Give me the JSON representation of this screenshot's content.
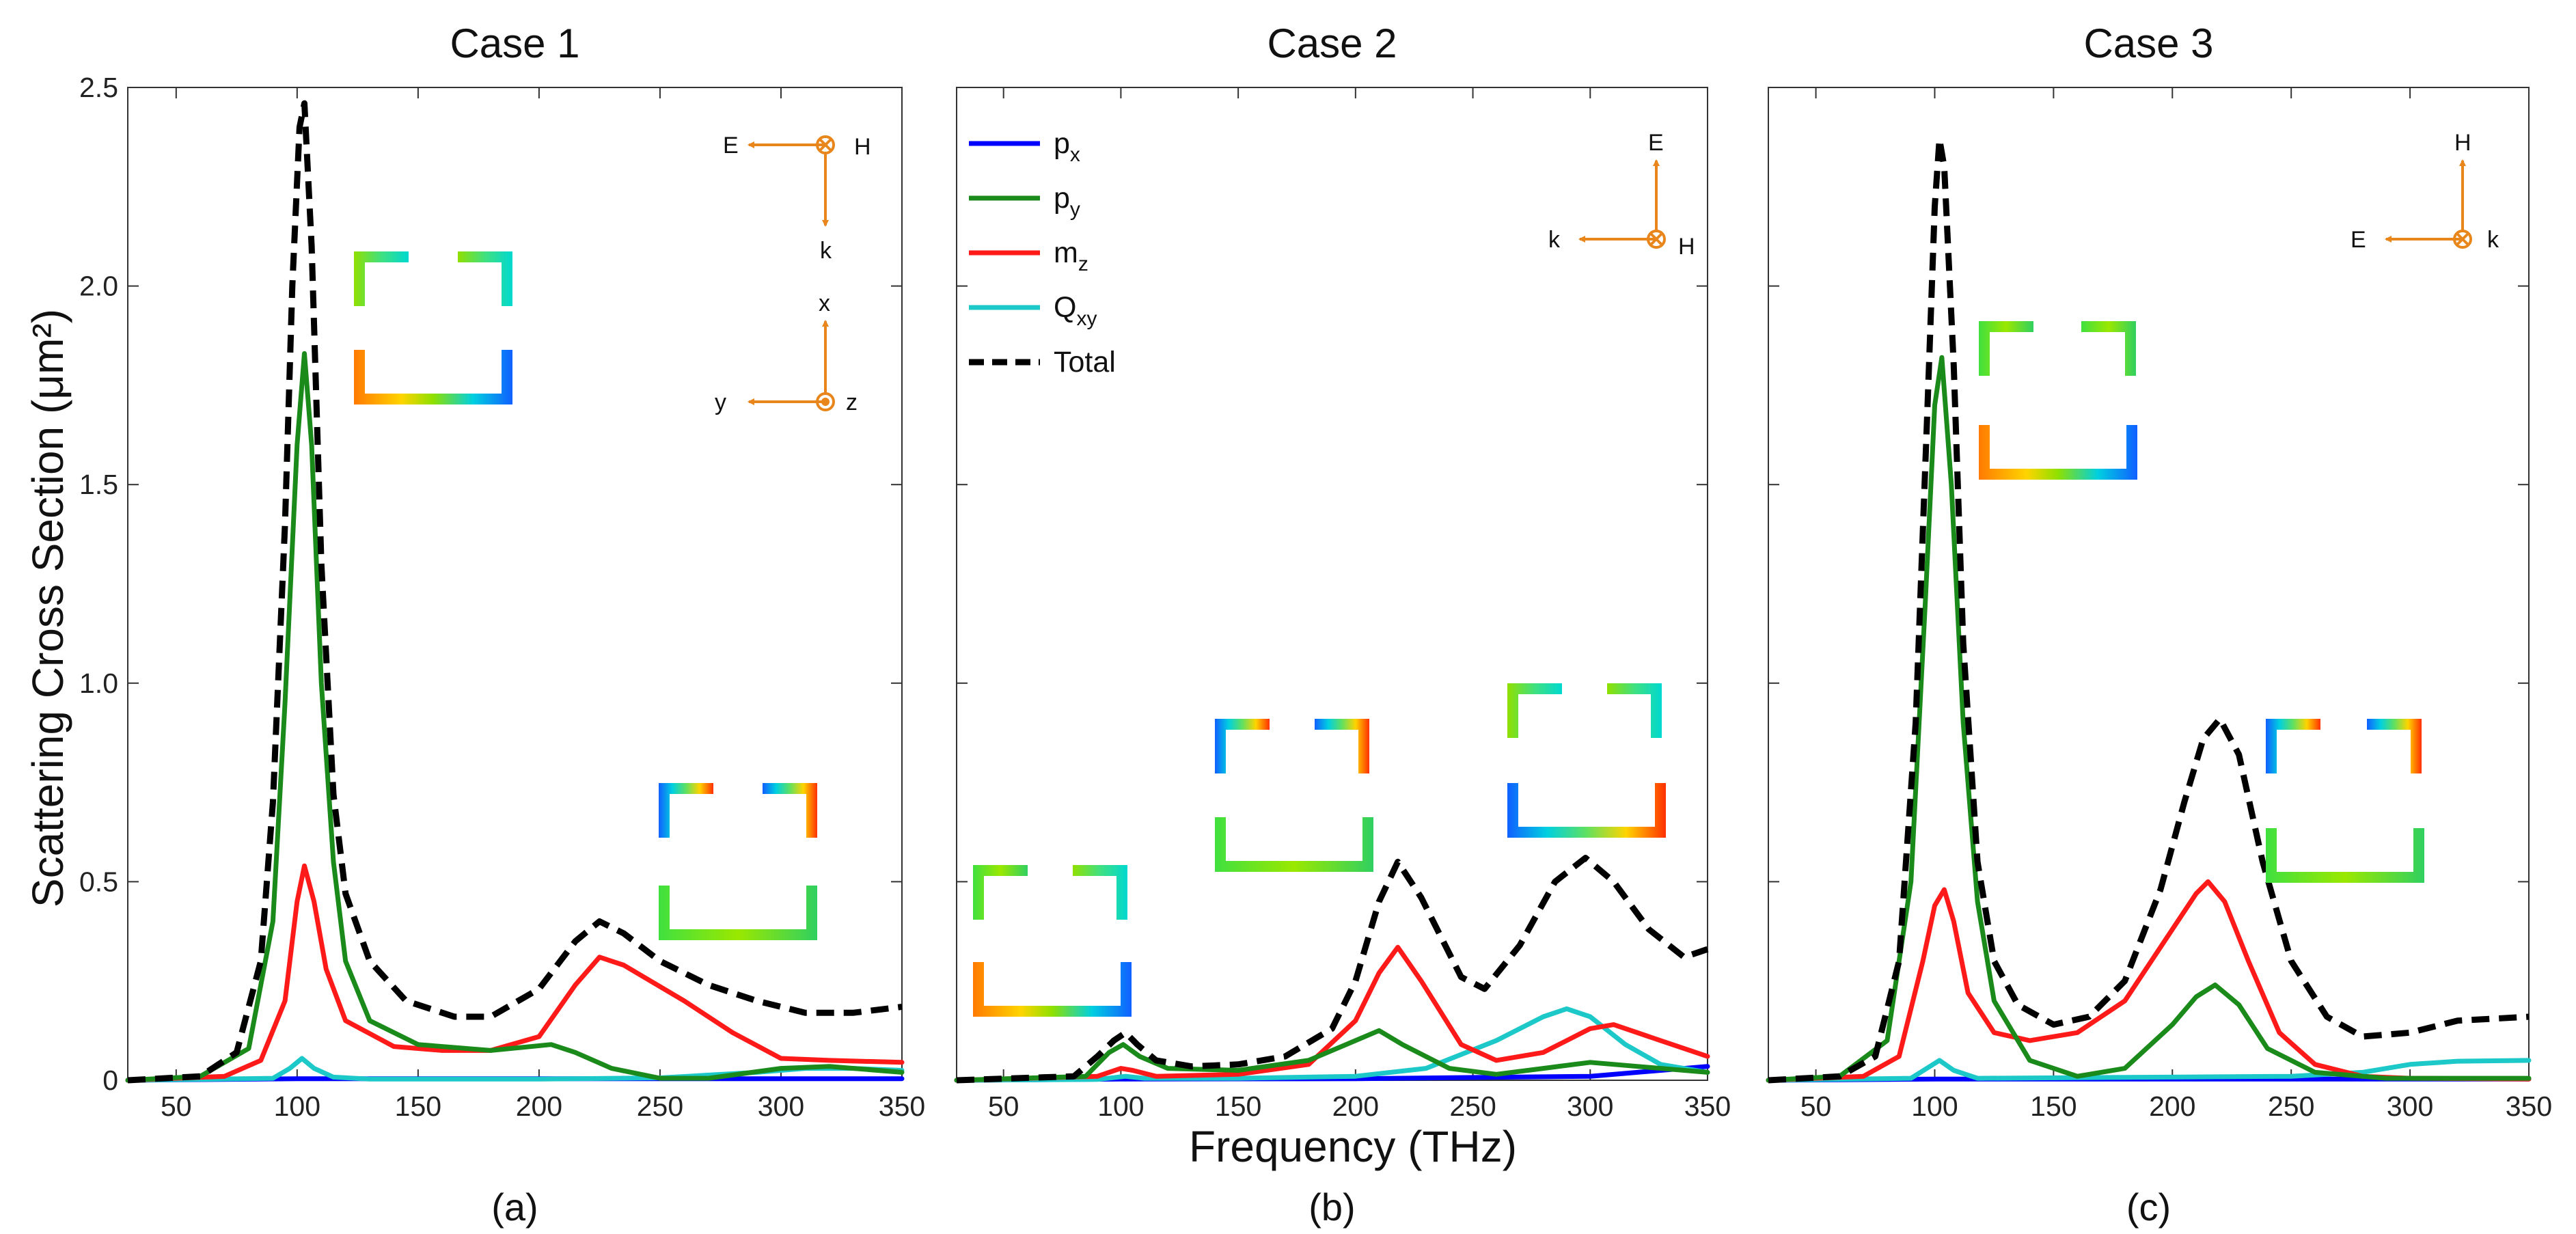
{
  "figure": {
    "ylabel": "Scattering Cross Section (μm²)",
    "xlabel": "Frequency (THz)"
  },
  "legend": [
    {
      "label": "p",
      "sub": "x",
      "series_key": "px",
      "color": "#0000ff",
      "dash": false
    },
    {
      "label": "p",
      "sub": "y",
      "series_key": "py",
      "color": "#1a8a1a",
      "dash": false
    },
    {
      "label": "m",
      "sub": "z",
      "series_key": "mz",
      "color": "#ff1a1a",
      "dash": false
    },
    {
      "label": "Q",
      "sub": "xy",
      "series_key": "qxy",
      "color": "#1cc8c8",
      "dash": false
    },
    {
      "label": "Total",
      "sub": "",
      "series_key": "total",
      "color": "#000000",
      "dash": true
    }
  ],
  "chart_data": [
    {
      "type": "line",
      "title": "Case 1",
      "sublabel": "(a)",
      "xlabel": "Frequency (THz)",
      "ylabel": "Scattering Cross Section (μm²)",
      "xlim": [
        30,
        350
      ],
      "ylim": [
        0,
        2.5
      ],
      "xticks": [
        50,
        100,
        150,
        200,
        250,
        300,
        350
      ],
      "yticks": [
        0,
        0.5,
        1.0,
        1.5,
        2.0,
        2.5
      ],
      "ytick_labels": [
        "0",
        "0.5",
        "1.0",
        "1.5",
        "2.0",
        "2.5"
      ],
      "coordinate_labels": [
        "E",
        "H",
        "k",
        "x",
        "y",
        "z"
      ],
      "series": [
        {
          "name": "px",
          "x": [
            30,
            100,
            200,
            350
          ],
          "values": [
            0,
            0.004,
            0.004,
            0.004
          ]
        },
        {
          "name": "py",
          "x": [
            30,
            60,
            80,
            90,
            95,
            100,
            103,
            106,
            110,
            115,
            120,
            130,
            150,
            180,
            205,
            215,
            230,
            250,
            270,
            300,
            320,
            350
          ],
          "values": [
            0,
            0.01,
            0.08,
            0.4,
            0.95,
            1.6,
            1.83,
            1.6,
            1.0,
            0.55,
            0.3,
            0.15,
            0.09,
            0.075,
            0.09,
            0.07,
            0.03,
            0.005,
            0.005,
            0.03,
            0.035,
            0.02
          ]
        },
        {
          "name": "mz",
          "x": [
            30,
            70,
            85,
            95,
            100,
            103,
            107,
            112,
            120,
            140,
            160,
            180,
            200,
            215,
            225,
            235,
            260,
            280,
            300,
            320,
            350
          ],
          "values": [
            0,
            0.01,
            0.05,
            0.2,
            0.45,
            0.54,
            0.45,
            0.28,
            0.15,
            0.085,
            0.075,
            0.075,
            0.11,
            0.24,
            0.31,
            0.29,
            0.2,
            0.12,
            0.055,
            0.05,
            0.045
          ]
        },
        {
          "name": "qxy",
          "x": [
            30,
            90,
            97,
            102,
            107,
            115,
            130,
            200,
            250,
            290,
            310,
            330,
            350
          ],
          "values": [
            0,
            0.005,
            0.03,
            0.055,
            0.03,
            0.008,
            0.003,
            0.003,
            0.006,
            0.02,
            0.03,
            0.03,
            0.025
          ]
        },
        {
          "name": "total",
          "x": [
            30,
            60,
            75,
            85,
            90,
            95,
            98,
            101,
            103,
            106,
            110,
            115,
            120,
            130,
            145,
            165,
            180,
            200,
            215,
            225,
            235,
            250,
            270,
            290,
            310,
            330,
            350
          ],
          "values": [
            0,
            0.01,
            0.07,
            0.3,
            0.7,
            1.4,
            2.0,
            2.4,
            2.46,
            2.1,
            1.3,
            0.72,
            0.47,
            0.3,
            0.2,
            0.16,
            0.16,
            0.23,
            0.35,
            0.4,
            0.37,
            0.3,
            0.24,
            0.2,
            0.17,
            0.17,
            0.185
          ]
        }
      ]
    },
    {
      "type": "line",
      "title": "Case 2",
      "sublabel": "(b)",
      "xlabel": "Frequency (THz)",
      "xlim": [
        30,
        350
      ],
      "ylim": [
        0,
        2.5
      ],
      "xticks": [
        50,
        100,
        150,
        200,
        250,
        300,
        350
      ],
      "yticks": [
        0,
        0.5,
        1.0,
        1.5,
        2.0,
        2.5
      ],
      "coordinate_labels": [
        "E",
        "k",
        "H"
      ],
      "series": [
        {
          "name": "px",
          "x": [
            30,
            100,
            200,
            300,
            350
          ],
          "values": [
            0,
            0.003,
            0.004,
            0.01,
            0.035
          ]
        },
        {
          "name": "py",
          "x": [
            30,
            85,
            95,
            101,
            108,
            120,
            150,
            180,
            200,
            210,
            220,
            240,
            260,
            280,
            300,
            320,
            350
          ],
          "values": [
            0,
            0.01,
            0.07,
            0.09,
            0.06,
            0.03,
            0.025,
            0.05,
            0.1,
            0.125,
            0.09,
            0.03,
            0.015,
            0.03,
            0.045,
            0.035,
            0.02
          ]
        },
        {
          "name": "mz",
          "x": [
            30,
            90,
            100,
            105,
            115,
            150,
            180,
            200,
            210,
            218,
            228,
            245,
            260,
            280,
            300,
            310,
            330,
            350
          ],
          "values": [
            0,
            0.01,
            0.03,
            0.025,
            0.01,
            0.015,
            0.04,
            0.15,
            0.27,
            0.335,
            0.25,
            0.09,
            0.05,
            0.07,
            0.13,
            0.14,
            0.1,
            0.06
          ]
        },
        {
          "name": "qxy",
          "x": [
            30,
            90,
            102,
            110,
            150,
            200,
            230,
            260,
            280,
            290,
            300,
            315,
            330,
            350
          ],
          "values": [
            0,
            0.002,
            0.01,
            0.005,
            0.005,
            0.01,
            0.03,
            0.1,
            0.16,
            0.18,
            0.16,
            0.09,
            0.04,
            0.02
          ]
        },
        {
          "name": "total",
          "x": [
            30,
            80,
            90,
            97,
            102,
            107,
            115,
            130,
            150,
            170,
            190,
            200,
            210,
            218,
            228,
            245,
            255,
            270,
            285,
            298,
            310,
            325,
            340,
            350
          ],
          "values": [
            0,
            0.01,
            0.06,
            0.1,
            0.12,
            0.09,
            0.05,
            0.035,
            0.04,
            0.06,
            0.13,
            0.25,
            0.45,
            0.55,
            0.46,
            0.26,
            0.23,
            0.34,
            0.5,
            0.56,
            0.5,
            0.38,
            0.31,
            0.33
          ]
        }
      ]
    },
    {
      "type": "line",
      "title": "Case 3",
      "sublabel": "(c)",
      "xlabel": "Frequency (THz)",
      "xlim": [
        30,
        350
      ],
      "ylim": [
        0,
        2.5
      ],
      "xticks": [
        50,
        100,
        150,
        200,
        250,
        300,
        350
      ],
      "yticks": [
        0,
        0.5,
        1.0,
        1.5,
        2.0,
        2.5
      ],
      "coordinate_labels": [
        "H",
        "E",
        "k"
      ],
      "series": [
        {
          "name": "px",
          "x": [
            30,
            100,
            200,
            350
          ],
          "values": [
            0,
            0.003,
            0.003,
            0.003
          ]
        },
        {
          "name": "py",
          "x": [
            30,
            60,
            80,
            90,
            96,
            100,
            103,
            107,
            112,
            118,
            125,
            140,
            160,
            180,
            200,
            210,
            218,
            228,
            240,
            260,
            290,
            320,
            350
          ],
          "values": [
            0,
            0.01,
            0.1,
            0.5,
            1.2,
            1.7,
            1.82,
            1.5,
            0.9,
            0.45,
            0.2,
            0.05,
            0.01,
            0.03,
            0.14,
            0.21,
            0.24,
            0.19,
            0.08,
            0.02,
            0.005,
            0.005,
            0.005
          ]
        },
        {
          "name": "mz",
          "x": [
            30,
            70,
            85,
            95,
            100,
            104,
            108,
            114,
            125,
            140,
            160,
            180,
            200,
            210,
            215,
            222,
            232,
            245,
            260,
            280,
            300,
            350
          ],
          "values": [
            0,
            0.01,
            0.06,
            0.3,
            0.44,
            0.48,
            0.4,
            0.22,
            0.12,
            0.1,
            0.12,
            0.2,
            0.38,
            0.47,
            0.5,
            0.45,
            0.3,
            0.12,
            0.04,
            0.01,
            0.005,
            0.003
          ]
        },
        {
          "name": "qxy",
          "x": [
            30,
            90,
            98,
            102,
            108,
            118,
            200,
            250,
            280,
            300,
            320,
            350
          ],
          "values": [
            0,
            0.005,
            0.035,
            0.05,
            0.025,
            0.005,
            0.008,
            0.01,
            0.02,
            0.04,
            0.048,
            0.05
          ]
        },
        {
          "name": "total",
          "x": [
            30,
            60,
            75,
            85,
            92,
            97,
            100,
            102,
            104,
            108,
            112,
            118,
            125,
            135,
            150,
            165,
            180,
            195,
            205,
            213,
            220,
            228,
            238,
            250,
            265,
            280,
            300,
            320,
            350
          ],
          "values": [
            0,
            0.01,
            0.06,
            0.3,
            0.9,
            1.7,
            2.2,
            2.37,
            2.3,
            1.8,
            1.1,
            0.55,
            0.3,
            0.19,
            0.14,
            0.16,
            0.25,
            0.48,
            0.7,
            0.86,
            0.91,
            0.82,
            0.55,
            0.3,
            0.16,
            0.11,
            0.12,
            0.15,
            0.16
          ]
        }
      ]
    }
  ]
}
